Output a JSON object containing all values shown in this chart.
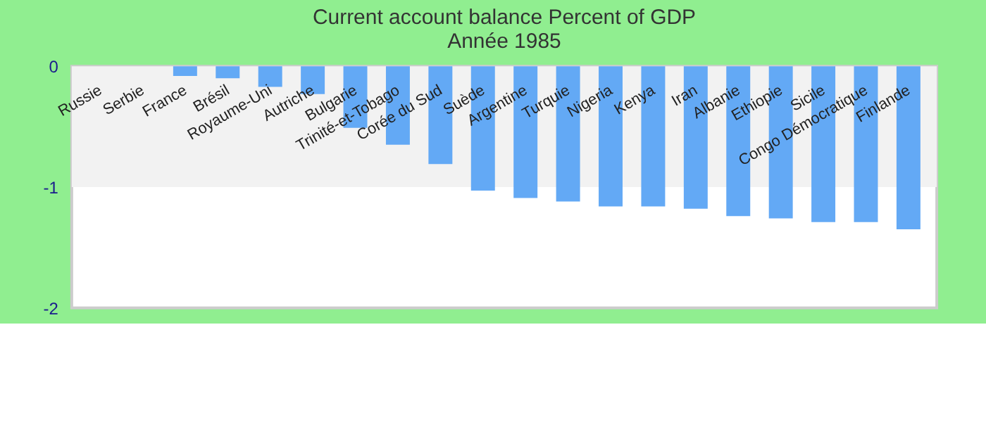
{
  "chart_data": {
    "type": "bar",
    "title": [
      "Current account balance  Percent of GDP",
      "Année 1985"
    ],
    "categories": [
      "Russie",
      "Serbie",
      "France",
      "Brésil",
      "Royaume-Uni",
      "Autriche",
      "Bulgarie",
      "Trinité-et-Tobago",
      "Corée du Sud",
      "Suède",
      "Argentine",
      "Turquie",
      "Nigeria",
      "Kenya",
      "Iran",
      "Albanie",
      "Ethiopie",
      "Sicile",
      "Congo Démocratique",
      "Finlande"
    ],
    "values": [
      0,
      0,
      -0.08,
      -0.1,
      -0.17,
      -0.23,
      -0.51,
      -0.65,
      -0.81,
      -1.03,
      -1.09,
      -1.12,
      -1.16,
      -1.16,
      -1.18,
      -1.24,
      -1.26,
      -1.29,
      -1.29,
      -1.35
    ],
    "color": "#63a9f5",
    "ylim": [
      -2,
      0
    ],
    "yticks": [
      -2,
      -1,
      0
    ],
    "grid": false,
    "bands": [
      {
        "axis": "y",
        "from": -1,
        "to": 0,
        "color": "#f2f2f2"
      }
    ]
  }
}
